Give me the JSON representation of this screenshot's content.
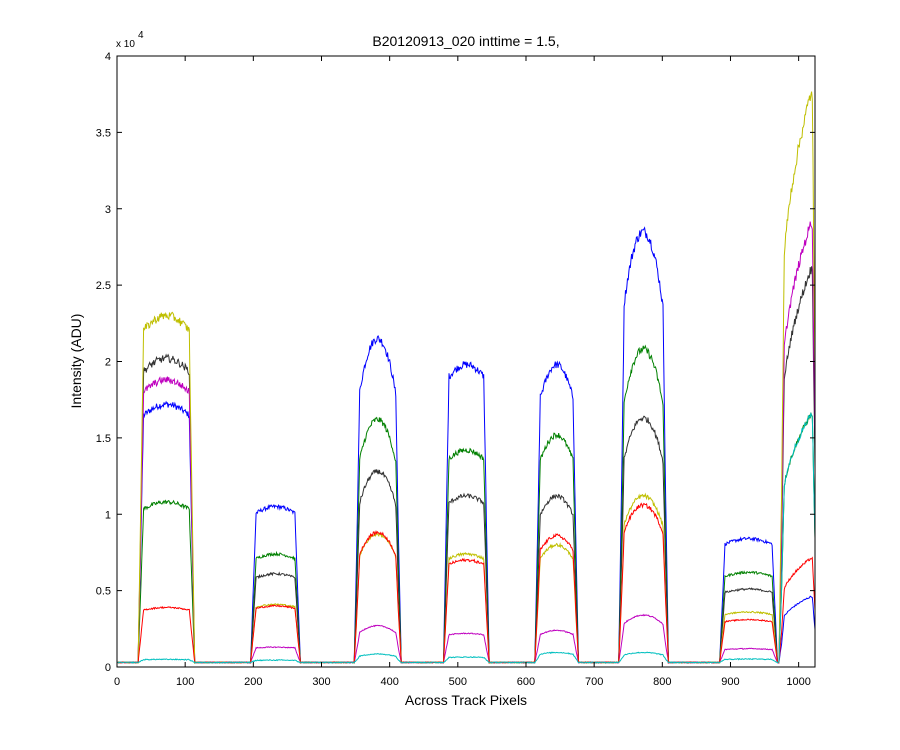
{
  "chart_data": {
    "type": "line",
    "title": "B20120913_020 inttime = 1.5,",
    "xlabel": "Across Track Pixels",
    "ylabel": "Intensity (ADU)",
    "y_scale_multiplier": "x 10",
    "y_scale_exponent": "4",
    "xlim": [
      0,
      1024
    ],
    "ylim": [
      0,
      40000
    ],
    "x_ticks": [
      0,
      100,
      200,
      300,
      400,
      500,
      600,
      700,
      800,
      900,
      1000
    ],
    "x_tick_labels": [
      "0",
      "100",
      "200",
      "300",
      "400",
      "500",
      "600",
      "700",
      "800",
      "900",
      "1000"
    ],
    "y_ticks": [
      0,
      5000,
      10000,
      15000,
      20000,
      25000,
      30000,
      35000,
      40000
    ],
    "y_tick_labels": [
      "0",
      "0.5",
      "1",
      "1.5",
      "2",
      "2.5",
      "3",
      "3.5",
      "4"
    ],
    "grid": false,
    "legend": "none",
    "baseline": 300,
    "regions": [
      {
        "x_start": 35,
        "x_end": 110,
        "shape": "flat"
      },
      {
        "x_start": 200,
        "x_end": 265,
        "shape": "flat"
      },
      {
        "x_start": 352,
        "x_end": 413,
        "shape": "peaked"
      },
      {
        "x_start": 483,
        "x_end": 542,
        "shape": "flat"
      },
      {
        "x_start": 617,
        "x_end": 673,
        "shape": "rounded"
      },
      {
        "x_start": 740,
        "x_end": 805,
        "shape": "peaked"
      },
      {
        "x_start": 888,
        "x_end": 965,
        "shape": "flat"
      },
      {
        "x_start": 975,
        "x_end": 1024,
        "shape": "rising"
      }
    ],
    "series": [
      {
        "color": "#0000ff",
        "levels": [
          17200,
          10500,
          21500,
          19800,
          19800,
          28500,
          8400,
          4600
        ]
      },
      {
        "color": "#008000",
        "levels": [
          10800,
          7400,
          16200,
          14200,
          15200,
          20800,
          6200,
          16500
        ]
      },
      {
        "color": "#333333",
        "levels": [
          20200,
          6100,
          12800,
          11200,
          11200,
          16300,
          5100,
          26000
        ]
      },
      {
        "color": "#bf00bf",
        "levels": [
          18800,
          1300,
          2700,
          2200,
          2400,
          3400,
          1200,
          29000
        ]
      },
      {
        "color": "#bfbf00",
        "levels": [
          23000,
          4100,
          8700,
          7400,
          8000,
          11200,
          3600,
          37500
        ]
      },
      {
        "color": "#ff0000",
        "levels": [
          3900,
          4000,
          8800,
          7000,
          8600,
          10600,
          3100,
          7100
        ]
      },
      {
        "color": "#00bfbf",
        "levels": [
          500,
          450,
          850,
          650,
          950,
          950,
          520,
          16500
        ]
      }
    ]
  }
}
